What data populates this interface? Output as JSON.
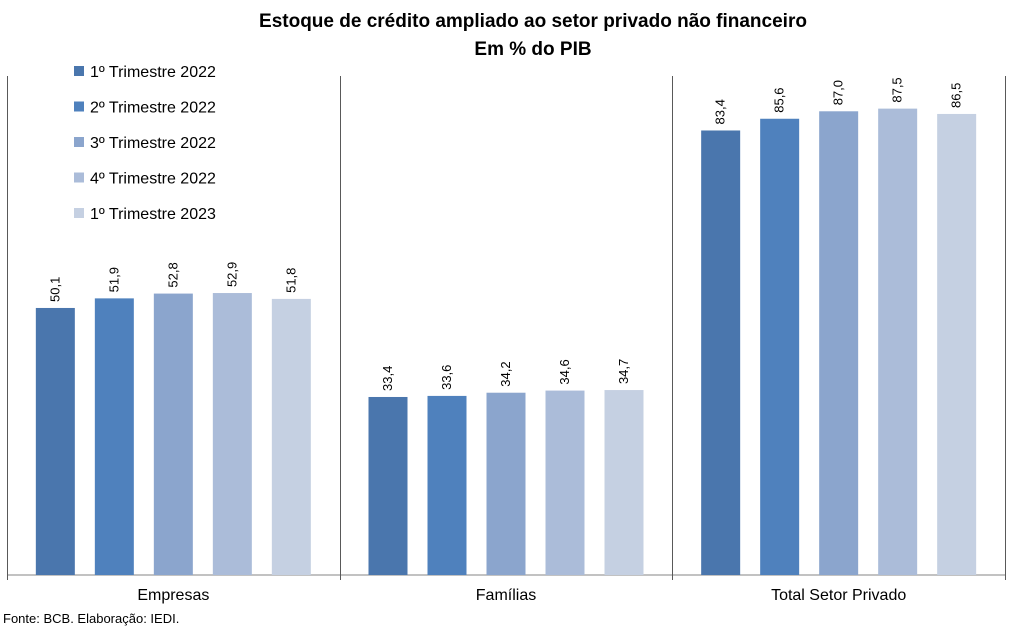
{
  "chart_data": {
    "type": "bar",
    "title": "Estoque de crédito ampliado ao setor privado não financeiro",
    "subtitle": "Em % do PIB",
    "categories": [
      "Empresas",
      "Famílias",
      "Total Setor Privado"
    ],
    "ylim": [
      0,
      100
    ],
    "grid": false,
    "legend_position": "top-left",
    "series": [
      {
        "name": "1º Trimestre 2022",
        "color": "#4a76ad",
        "values": [
          50.1,
          33.4,
          83.4
        ],
        "labels": [
          "50,1",
          "33,4",
          "83,4"
        ]
      },
      {
        "name": "2º Trimestre 2022",
        "color": "#4f81bd",
        "values": [
          51.9,
          33.6,
          85.6
        ],
        "labels": [
          "51,9",
          "33,6",
          "85,6"
        ]
      },
      {
        "name": "3º Trimestre 2022",
        "color": "#8ba5cd",
        "values": [
          52.8,
          34.2,
          87.0
        ],
        "labels": [
          "52,8",
          "34,2",
          "87,0"
        ]
      },
      {
        "name": "4º Trimestre 2022",
        "color": "#abbcd9",
        "values": [
          52.9,
          34.6,
          87.5
        ],
        "labels": [
          "52,9",
          "34,6",
          "87,5"
        ]
      },
      {
        "name": "1º Trimestre 2023",
        "color": "#c5d0e2",
        "values": [
          51.8,
          34.7,
          86.5
        ],
        "labels": [
          "51,8",
          "34,7",
          "86,5"
        ]
      }
    ]
  },
  "source": "Fonte: BCB. Elaboração: IEDI."
}
